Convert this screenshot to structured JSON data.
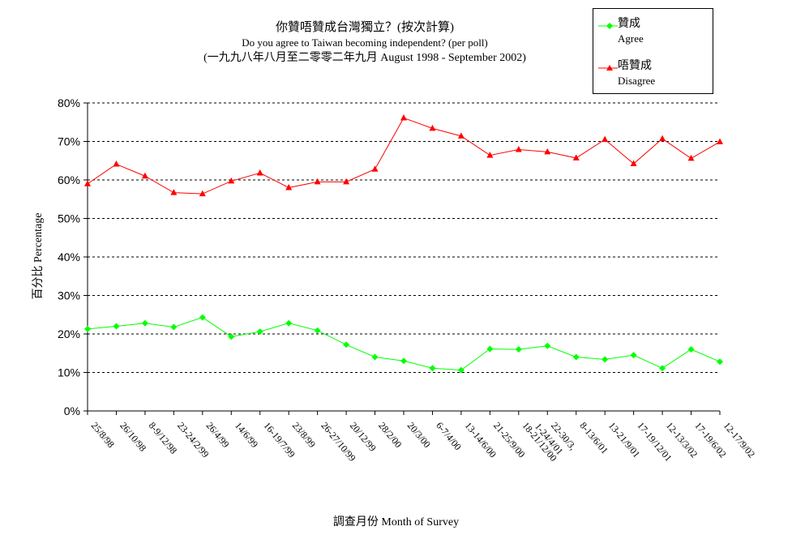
{
  "title": {
    "line1": "你贊唔贊成台灣獨立？(按次計算)",
    "line2": "Do you agree to Taiwan becoming independent? (per poll)",
    "line3": "(一九九八年八月至二零零二年九月 August 1998 - September 2002)"
  },
  "legend": {
    "agree_zh": "贊成",
    "agree_en": "Agree",
    "disagree_zh": "唔贊成",
    "disagree_en": "Disagree"
  },
  "axis": {
    "xlabel": "調查月份 Month of Survey",
    "ylabel": "百分比 Percentage"
  },
  "chart_data": {
    "type": "line",
    "title": "你贊唔贊成台灣獨立？(按次計算) Do you agree to Taiwan becoming independent? (per poll)",
    "xlabel": "調查月份 Month of Survey",
    "ylabel": "百分比 Percentage",
    "ylim": [
      0,
      80
    ],
    "yticks": [
      "0%",
      "10%",
      "20%",
      "30%",
      "40%",
      "50%",
      "60%",
      "70%",
      "80%"
    ],
    "grid": true,
    "legend_position": "top-right",
    "categories": [
      "25/8/98",
      "26/10/98",
      "8-9/12/98",
      "23-24/2/99",
      "26/4/99",
      "14/6/99",
      "16-19/7/99",
      "23/8/99",
      "26-27/10/99",
      "20/12/99",
      "28/2/00",
      "20/3/00",
      "6-7/4/00",
      "13-14/6/00",
      "21-25/9/00",
      "18-21/12/00",
      "22-30/3, 1-24/4/01",
      "8-13/6/01",
      "13-21/9/01",
      "17-19/12/01",
      "12-13/3/02",
      "17-19/6/02",
      "12-17/9/02"
    ],
    "series": [
      {
        "name": "贊成 Agree",
        "color": "#00ff00",
        "marker": "diamond",
        "values": [
          21.3,
          22.0,
          22.8,
          21.8,
          24.3,
          19.3,
          20.6,
          22.8,
          20.9,
          17.2,
          14.0,
          13.0,
          11.1,
          10.6,
          16.1,
          16.0,
          16.9,
          14.0,
          13.4,
          14.5,
          11.1,
          16.0,
          12.8
        ]
      },
      {
        "name": "唔贊成 Disagree",
        "color": "#ff0000",
        "marker": "triangle",
        "values": [
          59.0,
          64.1,
          61.0,
          56.7,
          56.4,
          59.7,
          61.8,
          58.0,
          59.5,
          59.5,
          62.8,
          76.1,
          73.4,
          71.4,
          66.4,
          67.9,
          67.3,
          65.7,
          70.5,
          64.2,
          70.7,
          65.6,
          69.9
        ]
      }
    ]
  }
}
